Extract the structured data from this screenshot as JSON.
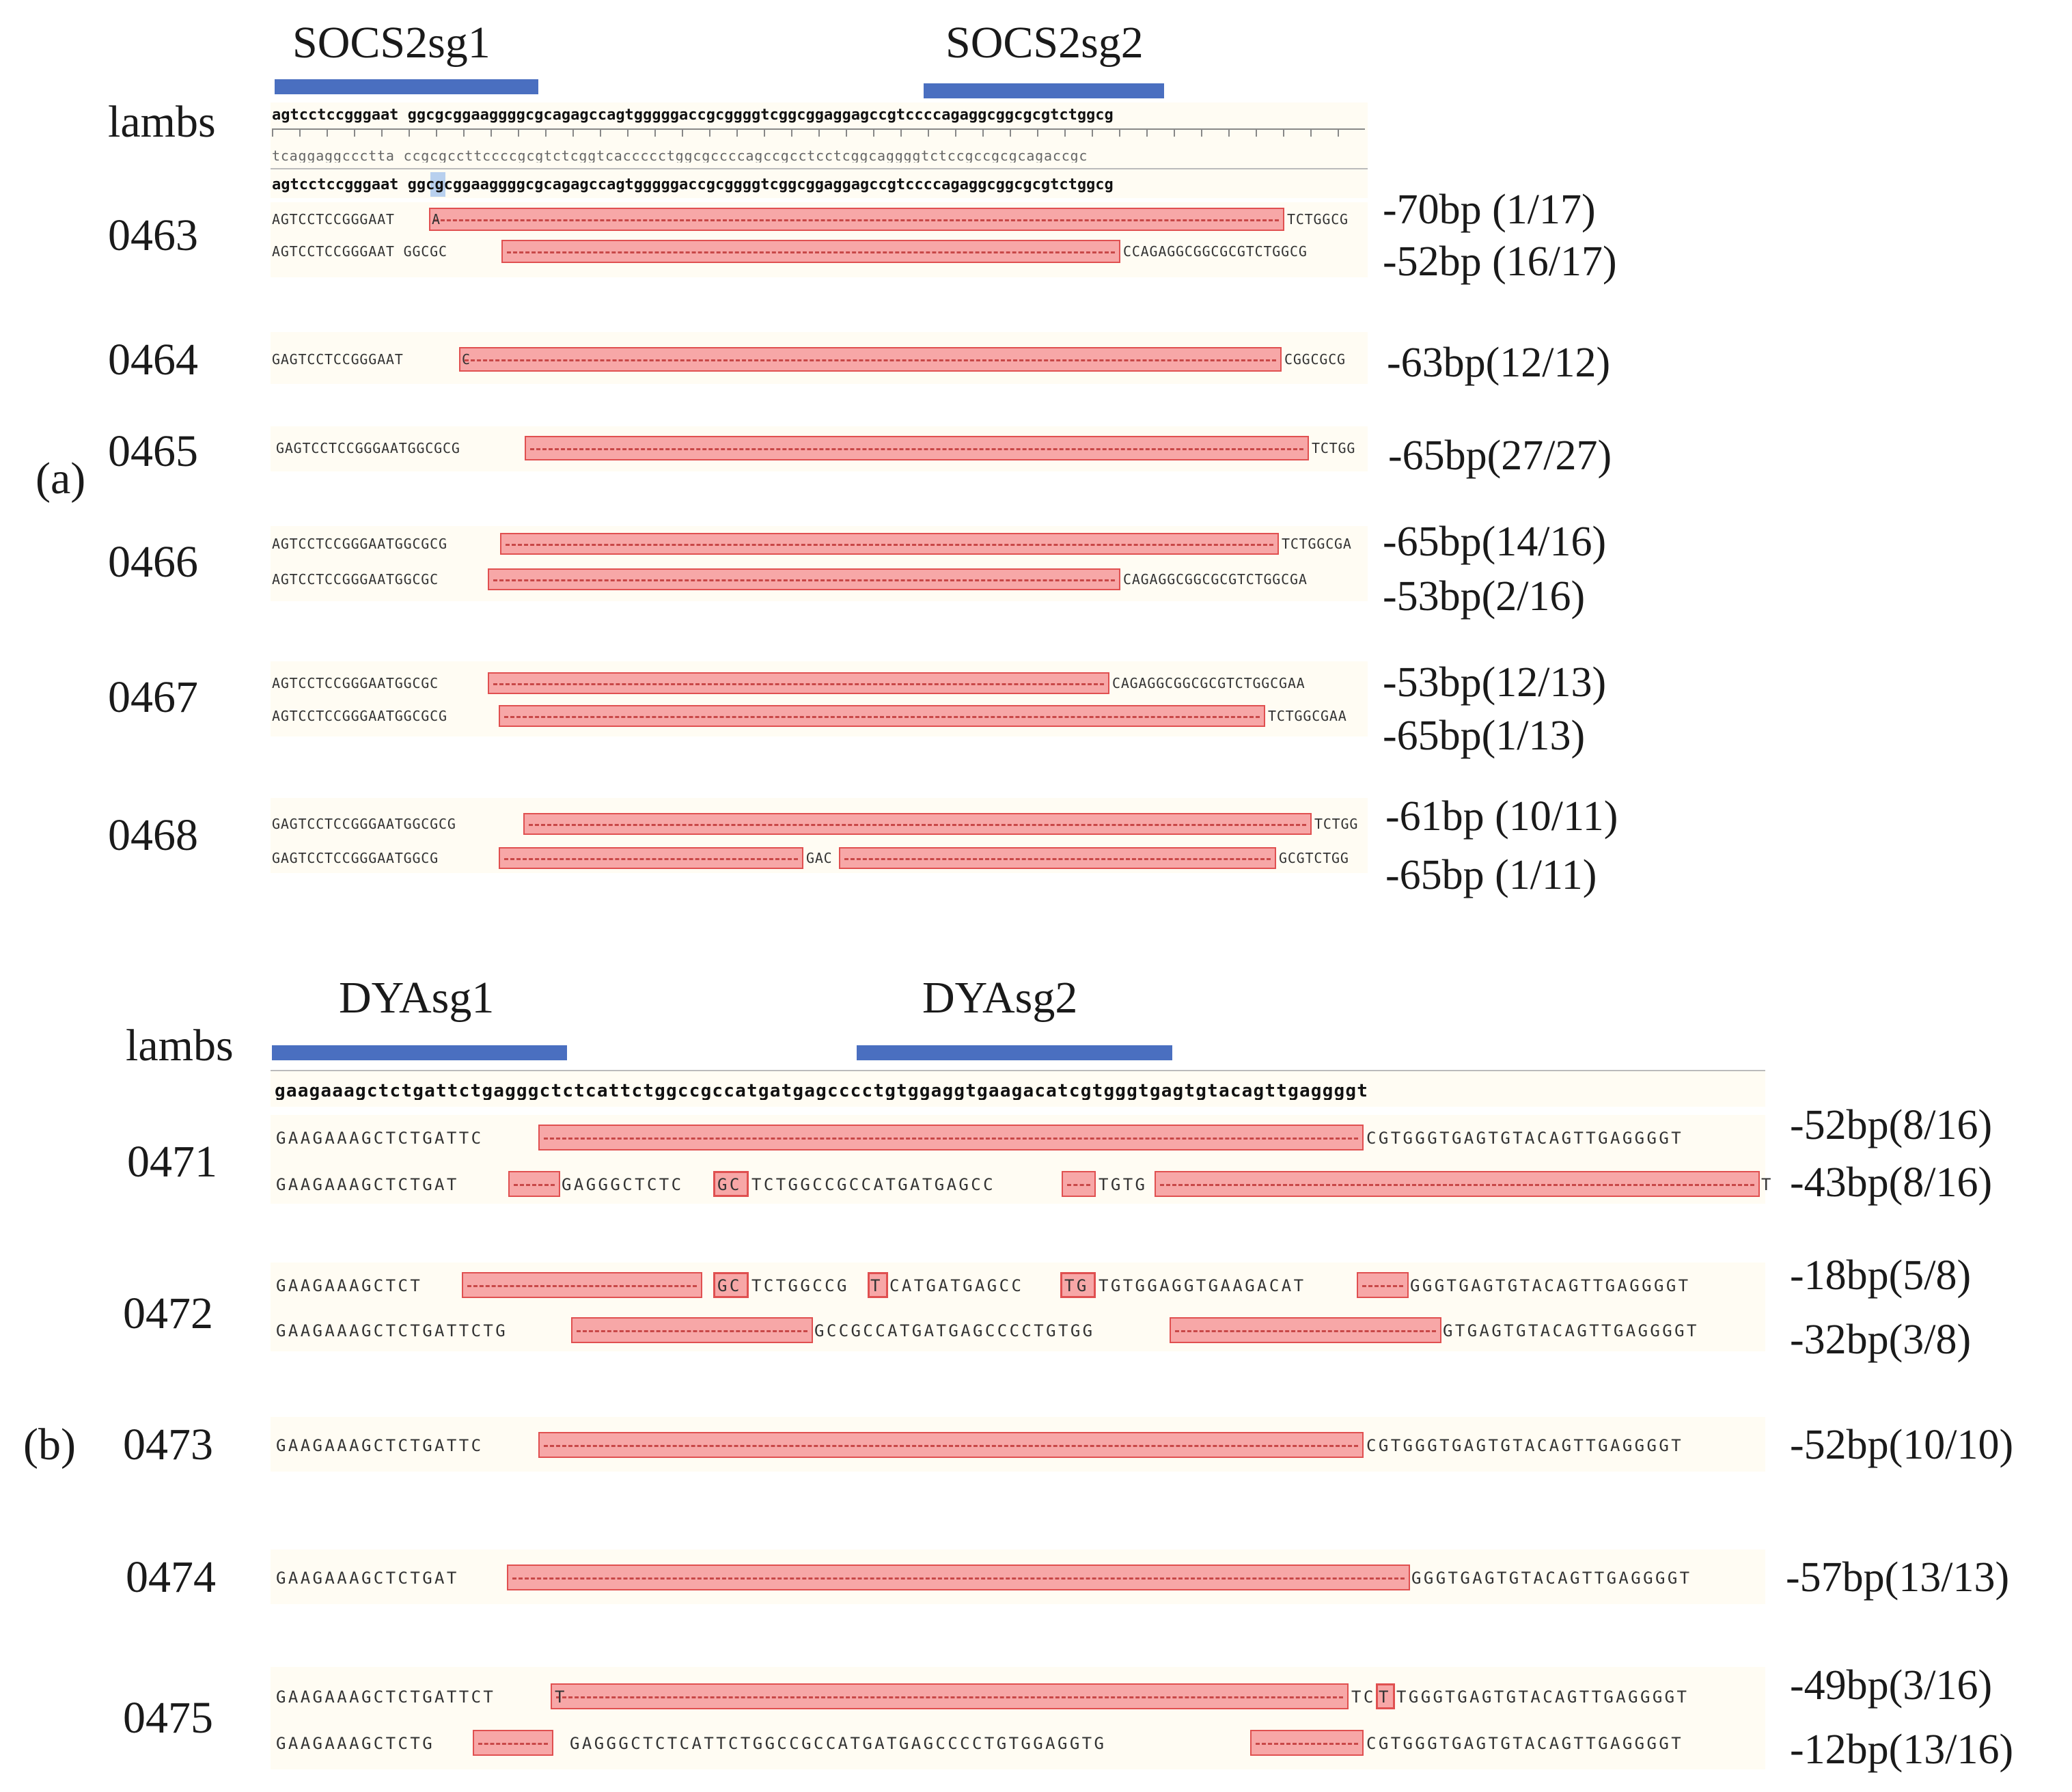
{
  "panel_a": {
    "panel_label": "(a)",
    "sg1_label": "SOCS2sg1",
    "sg2_label": "SOCS2sg2",
    "lambs_label": "lambs",
    "ref_top": "agtcctccgggaat ggcgcggaaggggcgcagagccagtgggggaccgcggggtcggcggaggagccgtccccagaggcggcgcgtctggcg",
    "ref_complement": "tcaggaggccctta ccgcgccttccccgcgtctcggtcaccccctggcgccccagccgcctcctcggcaggggtctccgccgcgcagaccgc",
    "ref_bottom": "agtcctccgggaat ggcgcggaaggggcgcagagccagtgggggaccgcggggtcggcggaggagccgtccccagaggcggcgcgtctggcg",
    "lambs": [
      {
        "id": "0463",
        "rows": [
          {
            "left": "AGTCCTCCGGGAAT",
            "del_start": "A",
            "right": "TCTGGCG",
            "result": "-70bp (1/17)"
          },
          {
            "left": "AGTCCTCCGGGAAT GGCGC",
            "del_start": "",
            "right": "CCAGAGGCGGCGCGTCTGGCG",
            "result": "-52bp (16/17)"
          }
        ]
      },
      {
        "id": "0464",
        "rows": [
          {
            "left": "GAGTCCTCCGGGAAT",
            "del_start": "C",
            "right": "CGGCGCG",
            "result": "-63bp(12/12)"
          }
        ]
      },
      {
        "id": "0465",
        "rows": [
          {
            "left": "GAGTCCTCCGGGAATGGCGCG",
            "del_start": "",
            "right": "TCTGG",
            "result": "-65bp(27/27)"
          }
        ]
      },
      {
        "id": "0466",
        "rows": [
          {
            "left": "AGTCCTCCGGGAATGGCGCG",
            "del_start": "",
            "right": "TCTGGCGA",
            "result": "-65bp(14/16)"
          },
          {
            "left": "AGTCCTCCGGGAATGGCGC",
            "del_start": "",
            "right": "CAGAGGCGGCGCGTCTGGCGA",
            "result": "-53bp(2/16)"
          }
        ]
      },
      {
        "id": "0467",
        "rows": [
          {
            "left": "AGTCCTCCGGGAATGGCGC",
            "del_start": "",
            "right": "CAGAGGCGGCGCGTCTGGCGAA",
            "result": "-53bp(12/13)"
          },
          {
            "left": "AGTCCTCCGGGAATGGCGCG",
            "del_start": "",
            "right": "TCTGGCGAA",
            "result": "-65bp(1/13)"
          }
        ]
      },
      {
        "id": "0468",
        "rows": [
          {
            "left": "GAGTCCTCCGGGAATGGCGCG",
            "del_start": "",
            "right": "TCTGG",
            "result": "-61bp (10/11)"
          },
          {
            "left": "GAGTCCTCCGGGAATGGCG",
            "del_start": "",
            "mid": "GAC",
            "right": "GCGTCTGG",
            "result": "-65bp (1/11)"
          }
        ]
      }
    ]
  },
  "panel_b": {
    "panel_label": "(b)",
    "sg1_label": "DYAsg1",
    "sg2_label": "DYAsg2",
    "lambs_label": "lambs",
    "ref": "gaagaaagctctgattctgagggctctcattctggccgccatgatgagcccctgtggaggtgaagacatcgtgggtgagtgtacagttgaggggt",
    "lambs": [
      {
        "id": "0471",
        "rows": [
          {
            "segments": [
              "GAAGAAAGCTCTGATTC",
              "",
              "CGTGGGTGAGTGTACAGTTGAGGGGT"
            ],
            "result": "-52bp(8/16)"
          },
          {
            "segments": [
              "GAAGAAAGCTCTGAT",
              "GAGGGCTCTC",
              "GC",
              "TCTGGCCGCCATGATGAGCC",
              "TGTG",
              "T"
            ],
            "result": "-43bp(8/16)"
          }
        ]
      },
      {
        "id": "0472",
        "rows": [
          {
            "segments": [
              "GAAGAAAGCTCT",
              "GC",
              "TCTGGCCG",
              "T",
              "CATGATGAGCC",
              "TG",
              "TGTGGAGGTGAAGACAT",
              "GGGTGAGTGTACAGTTGAGGGGT"
            ],
            "result": "-18bp(5/8)"
          },
          {
            "segments": [
              "GAAGAAAGCTCTGATTCTG",
              "GCCGCCATGATGAGCCCCTGTGG",
              "GTGAGTGTACAGTTGAGGGGT"
            ],
            "result": "-32bp(3/8)"
          }
        ]
      },
      {
        "id": "0473",
        "rows": [
          {
            "segments": [
              "GAAGAAAGCTCTGATTC",
              "CGTGGGTGAGTGTACAGTTGAGGGGT"
            ],
            "result": "-52bp(10/10)"
          }
        ]
      },
      {
        "id": "0474",
        "rows": [
          {
            "segments": [
              "GAAGAAAGCTCTGAT",
              "GGGTGAGTGTACAGTTGAGGGGT"
            ],
            "result": "-57bp(13/13)"
          }
        ]
      },
      {
        "id": "0475",
        "rows": [
          {
            "segments": [
              "GAAGAAAGCTCTGATTCT",
              "T",
              "TC",
              "T",
              "TGGGTGAGTGTACAGTTGAGGGGT"
            ],
            "result": "-49bp(3/16)"
          },
          {
            "segments": [
              "GAAGAAAGCTCTG",
              "GAGGGCTCTCATTCTGGCCGCCATGATGAGCCCCTGTGGAGGTG",
              "CGTGGGTGAGTGTACAGTTGAGGGGT"
            ],
            "result": "-12bp(13/16)"
          }
        ]
      }
    ]
  }
}
